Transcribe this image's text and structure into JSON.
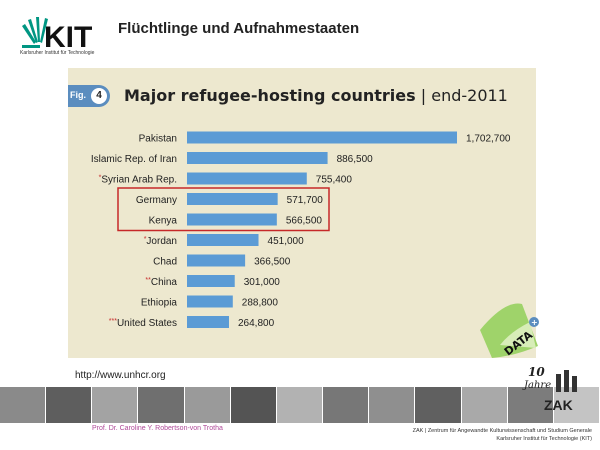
{
  "header": {
    "logo_text": "KIT",
    "logo_subtitle": "Karlsruher Institut für Technologie",
    "title": "Flüchtlinge und Aufnahmestaaten"
  },
  "figure": {
    "fig_label": "Fig.",
    "fig_number": "4",
    "title_main": "Major refugee-hosting countries",
    "title_sub": " | end-2011",
    "data_badge": "DATA"
  },
  "chart_data": {
    "type": "bar",
    "orientation": "horizontal",
    "title": "Major refugee-hosting countries | end-2011",
    "categories": [
      "Pakistan",
      "Islamic Rep. of Iran",
      "Syrian Arab Rep.",
      "Germany",
      "Kenya",
      "Jordan",
      "Chad",
      "China",
      "Ethiopia",
      "United States"
    ],
    "category_prefixes": [
      "",
      "",
      "*",
      "",
      "",
      "*",
      "",
      "**",
      "",
      "***"
    ],
    "values": [
      1702700,
      886500,
      755400,
      571700,
      566500,
      451000,
      366500,
      301000,
      288800,
      264800
    ],
    "value_labels": [
      "1,702,700",
      "886,500",
      "755,400",
      "571,700",
      "566,500",
      "451,000",
      "366,500",
      "301,000",
      "288,800",
      "264,800"
    ],
    "highlighted": [
      "Germany",
      "Kenya"
    ],
    "bar_color": "#5b9bd5",
    "highlight_color": "#c62828",
    "xlim": [
      0,
      1702700
    ]
  },
  "source": "http://www.unhcr.org",
  "zak": {
    "years_num": "10",
    "years_word": "Jahre",
    "name": "ZAK"
  },
  "footer": {
    "left": "Prof. Dr. Caroline Y. Robertson-von Trotha",
    "right_line1": "ZAK | Zentrum für Angewandte Kulturwissenschaft und Studium Generale",
    "right_line2": "Karlsruher Institut für Technologie (KIT)"
  },
  "colors": {
    "panel": "#ede8cf",
    "accent_green": "#009682",
    "footer_pink": "#b04a9a"
  }
}
